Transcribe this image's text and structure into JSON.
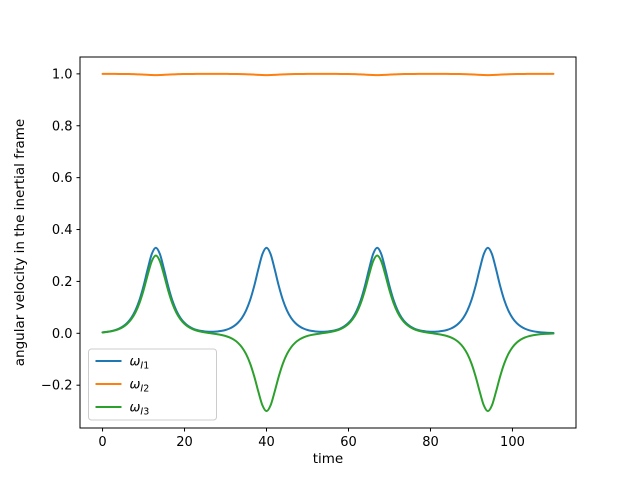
{
  "chart_data": {
    "type": "line",
    "title": "",
    "xlabel": "time",
    "ylabel": "angular velocity in the inertial frame",
    "xlim": [
      -5.5,
      115.5
    ],
    "ylim": [
      -0.365,
      1.065
    ],
    "grid": false,
    "x_ticks": [
      {
        "value": 0,
        "label": "0"
      },
      {
        "value": 20,
        "label": "20"
      },
      {
        "value": 40,
        "label": "40"
      },
      {
        "value": 60,
        "label": "60"
      },
      {
        "value": 80,
        "label": "80"
      },
      {
        "value": 100,
        "label": "100"
      }
    ],
    "y_ticks": [
      {
        "value": -0.2,
        "label": "−0.2"
      },
      {
        "value": 0.0,
        "label": "0.0"
      },
      {
        "value": 0.2,
        "label": "0.2"
      },
      {
        "value": 0.4,
        "label": "0.4"
      },
      {
        "value": 0.6,
        "label": "0.6"
      },
      {
        "value": 0.8,
        "label": "0.8"
      },
      {
        "value": 1.0,
        "label": "1.0"
      }
    ],
    "legend": {
      "position": "lower left",
      "entries": [
        {
          "name": "omega_I1",
          "symbol": "ω",
          "sub": "I1",
          "color": "#1f77b4"
        },
        {
          "name": "omega_I2",
          "symbol": "ω",
          "sub": "I2",
          "color": "#ff7f0e"
        },
        {
          "name": "omega_I3",
          "symbol": "ω",
          "sub": "I3",
          "color": "#2ca02c"
        }
      ]
    },
    "x": [
      0,
      1,
      2,
      3,
      4,
      5,
      6,
      7,
      8,
      9,
      10,
      11,
      12,
      13,
      14,
      15,
      16,
      17,
      18,
      19,
      20,
      21,
      22,
      23,
      24,
      25,
      26,
      27,
      28,
      29,
      30,
      31,
      32,
      33,
      34,
      35,
      36,
      37,
      38,
      39,
      40,
      41,
      42,
      43,
      44,
      45,
      46,
      47,
      48,
      49,
      50,
      51,
      52,
      53,
      54,
      55,
      56,
      57,
      58,
      59,
      60,
      61,
      62,
      63,
      64,
      65,
      66,
      67,
      68,
      69,
      70,
      71,
      72,
      73,
      74,
      75,
      76,
      77,
      78,
      79,
      80,
      81,
      82,
      83,
      84,
      85,
      86,
      87,
      88,
      89,
      90,
      91,
      92,
      93,
      94,
      95,
      96,
      97,
      98,
      99,
      100,
      101,
      102,
      103,
      104,
      105,
      106,
      107,
      108,
      109,
      110
    ],
    "series": [
      {
        "name": "omega_I1",
        "color": "#1f77b4",
        "values": [
          0.0036,
          0.0054,
          0.0081,
          0.0121,
          0.018,
          0.0269,
          0.04,
          0.0594,
          0.0877,
          0.128,
          0.1823,
          0.2467,
          0.3053,
          0.33,
          0.3053,
          0.2467,
          0.1823,
          0.128,
          0.0877,
          0.0594,
          0.0402,
          0.0272,
          0.0185,
          0.0128,
          0.0092,
          0.0071,
          0.0061,
          0.0061,
          0.0071,
          0.0092,
          0.0128,
          0.0185,
          0.0272,
          0.0402,
          0.0594,
          0.0877,
          0.128,
          0.1823,
          0.2467,
          0.3053,
          0.33,
          0.3053,
          0.2467,
          0.1823,
          0.128,
          0.0877,
          0.0594,
          0.0402,
          0.0272,
          0.0185,
          0.0128,
          0.0092,
          0.0071,
          0.0061,
          0.0061,
          0.0071,
          0.0092,
          0.0128,
          0.0185,
          0.0272,
          0.0402,
          0.0594,
          0.0877,
          0.128,
          0.1823,
          0.2467,
          0.3053,
          0.33,
          0.3053,
          0.2467,
          0.1823,
          0.128,
          0.0877,
          0.0594,
          0.0402,
          0.0272,
          0.0185,
          0.0128,
          0.0092,
          0.0071,
          0.0061,
          0.0061,
          0.0071,
          0.0092,
          0.0128,
          0.0185,
          0.0272,
          0.0402,
          0.0594,
          0.0877,
          0.128,
          0.1823,
          0.2467,
          0.3053,
          0.33,
          0.3053,
          0.2467,
          0.1823,
          0.128,
          0.0877,
          0.0594,
          0.04,
          0.0269,
          0.018,
          0.0121,
          0.0081,
          0.0054,
          0.0036,
          0.0024,
          0.0017,
          0.0011
        ]
      },
      {
        "name": "omega_I2",
        "color": "#ff7f0e",
        "values": [
          1,
          0.9999,
          0.9999,
          0.9998,
          0.9997,
          0.9996,
          0.9994,
          0.9991,
          0.9987,
          0.9981,
          0.9972,
          0.9963,
          0.9954,
          0.995,
          0.9954,
          0.9963,
          0.9972,
          0.9981,
          0.9987,
          0.9991,
          0.9994,
          0.9996,
          0.9997,
          0.9998,
          0.9999,
          0.9999,
          1,
          1,
          0.9999,
          0.9999,
          0.9998,
          0.9997,
          0.9996,
          0.9994,
          0.9991,
          0.9987,
          0.9981,
          0.9972,
          0.9963,
          0.9954,
          0.995,
          0.9954,
          0.9963,
          0.9972,
          0.9981,
          0.9987,
          0.9991,
          0.9994,
          0.9996,
          0.9997,
          0.9998,
          0.9999,
          0.9999,
          1,
          1,
          0.9999,
          0.9999,
          0.9998,
          0.9997,
          0.9996,
          0.9994,
          0.9991,
          0.9987,
          0.9981,
          0.9972,
          0.9963,
          0.9954,
          0.995,
          0.9954,
          0.9963,
          0.9972,
          0.9981,
          0.9987,
          0.9991,
          0.9994,
          0.9996,
          0.9997,
          0.9998,
          0.9999,
          0.9999,
          1,
          1,
          0.9999,
          0.9999,
          0.9998,
          0.9997,
          0.9996,
          0.9994,
          0.9991,
          0.9987,
          0.9981,
          0.9972,
          0.9963,
          0.9954,
          0.995,
          0.9954,
          0.9963,
          0.9972,
          0.9981,
          0.9987,
          0.9991,
          0.9994,
          0.9996,
          0.9997,
          0.9998,
          0.9999,
          0.9999,
          1,
          1,
          1,
          1
        ]
      },
      {
        "name": "omega_I3",
        "color": "#2ca02c",
        "values": [
          0.0033,
          0.005,
          0.0074,
          0.011,
          0.0164,
          0.0244,
          0.0364,
          0.054,
          0.0797,
          0.1164,
          0.1657,
          0.2243,
          0.2775,
          0.3,
          0.2775,
          0.2243,
          0.1657,
          0.1164,
          0.0797,
          0.054,
          0.0362,
          0.0241,
          0.0159,
          0.0103,
          0.0064,
          0.0035,
          0.0011,
          -0.0011,
          -0.0035,
          -0.0064,
          -0.0103,
          -0.0159,
          -0.0241,
          -0.0362,
          -0.054,
          -0.0797,
          -0.1164,
          -0.1657,
          -0.2243,
          -0.2775,
          -0.3,
          -0.2775,
          -0.2243,
          -0.1657,
          -0.1164,
          -0.0797,
          -0.054,
          -0.0362,
          -0.0241,
          -0.0159,
          -0.0103,
          -0.0064,
          -0.0035,
          -0.0011,
          0.0011,
          0.0035,
          0.0064,
          0.0103,
          0.0159,
          0.0241,
          0.0362,
          0.054,
          0.0797,
          0.1164,
          0.1657,
          0.2243,
          0.2775,
          0.3,
          0.2775,
          0.2243,
          0.1657,
          0.1164,
          0.0797,
          0.054,
          0.0362,
          0.0241,
          0.0159,
          0.0103,
          0.0064,
          0.0035,
          0.0011,
          -0.0011,
          -0.0035,
          -0.0064,
          -0.0103,
          -0.0159,
          -0.0241,
          -0.0362,
          -0.054,
          -0.0797,
          -0.1164,
          -0.1657,
          -0.2243,
          -0.2775,
          -0.3,
          -0.2775,
          -0.2243,
          -0.1657,
          -0.1164,
          -0.0797,
          -0.054,
          -0.0364,
          -0.0244,
          -0.0164,
          -0.011,
          -0.0074,
          -0.005,
          -0.0033,
          -0.0022,
          -0.0015,
          -0.001
        ]
      }
    ]
  }
}
